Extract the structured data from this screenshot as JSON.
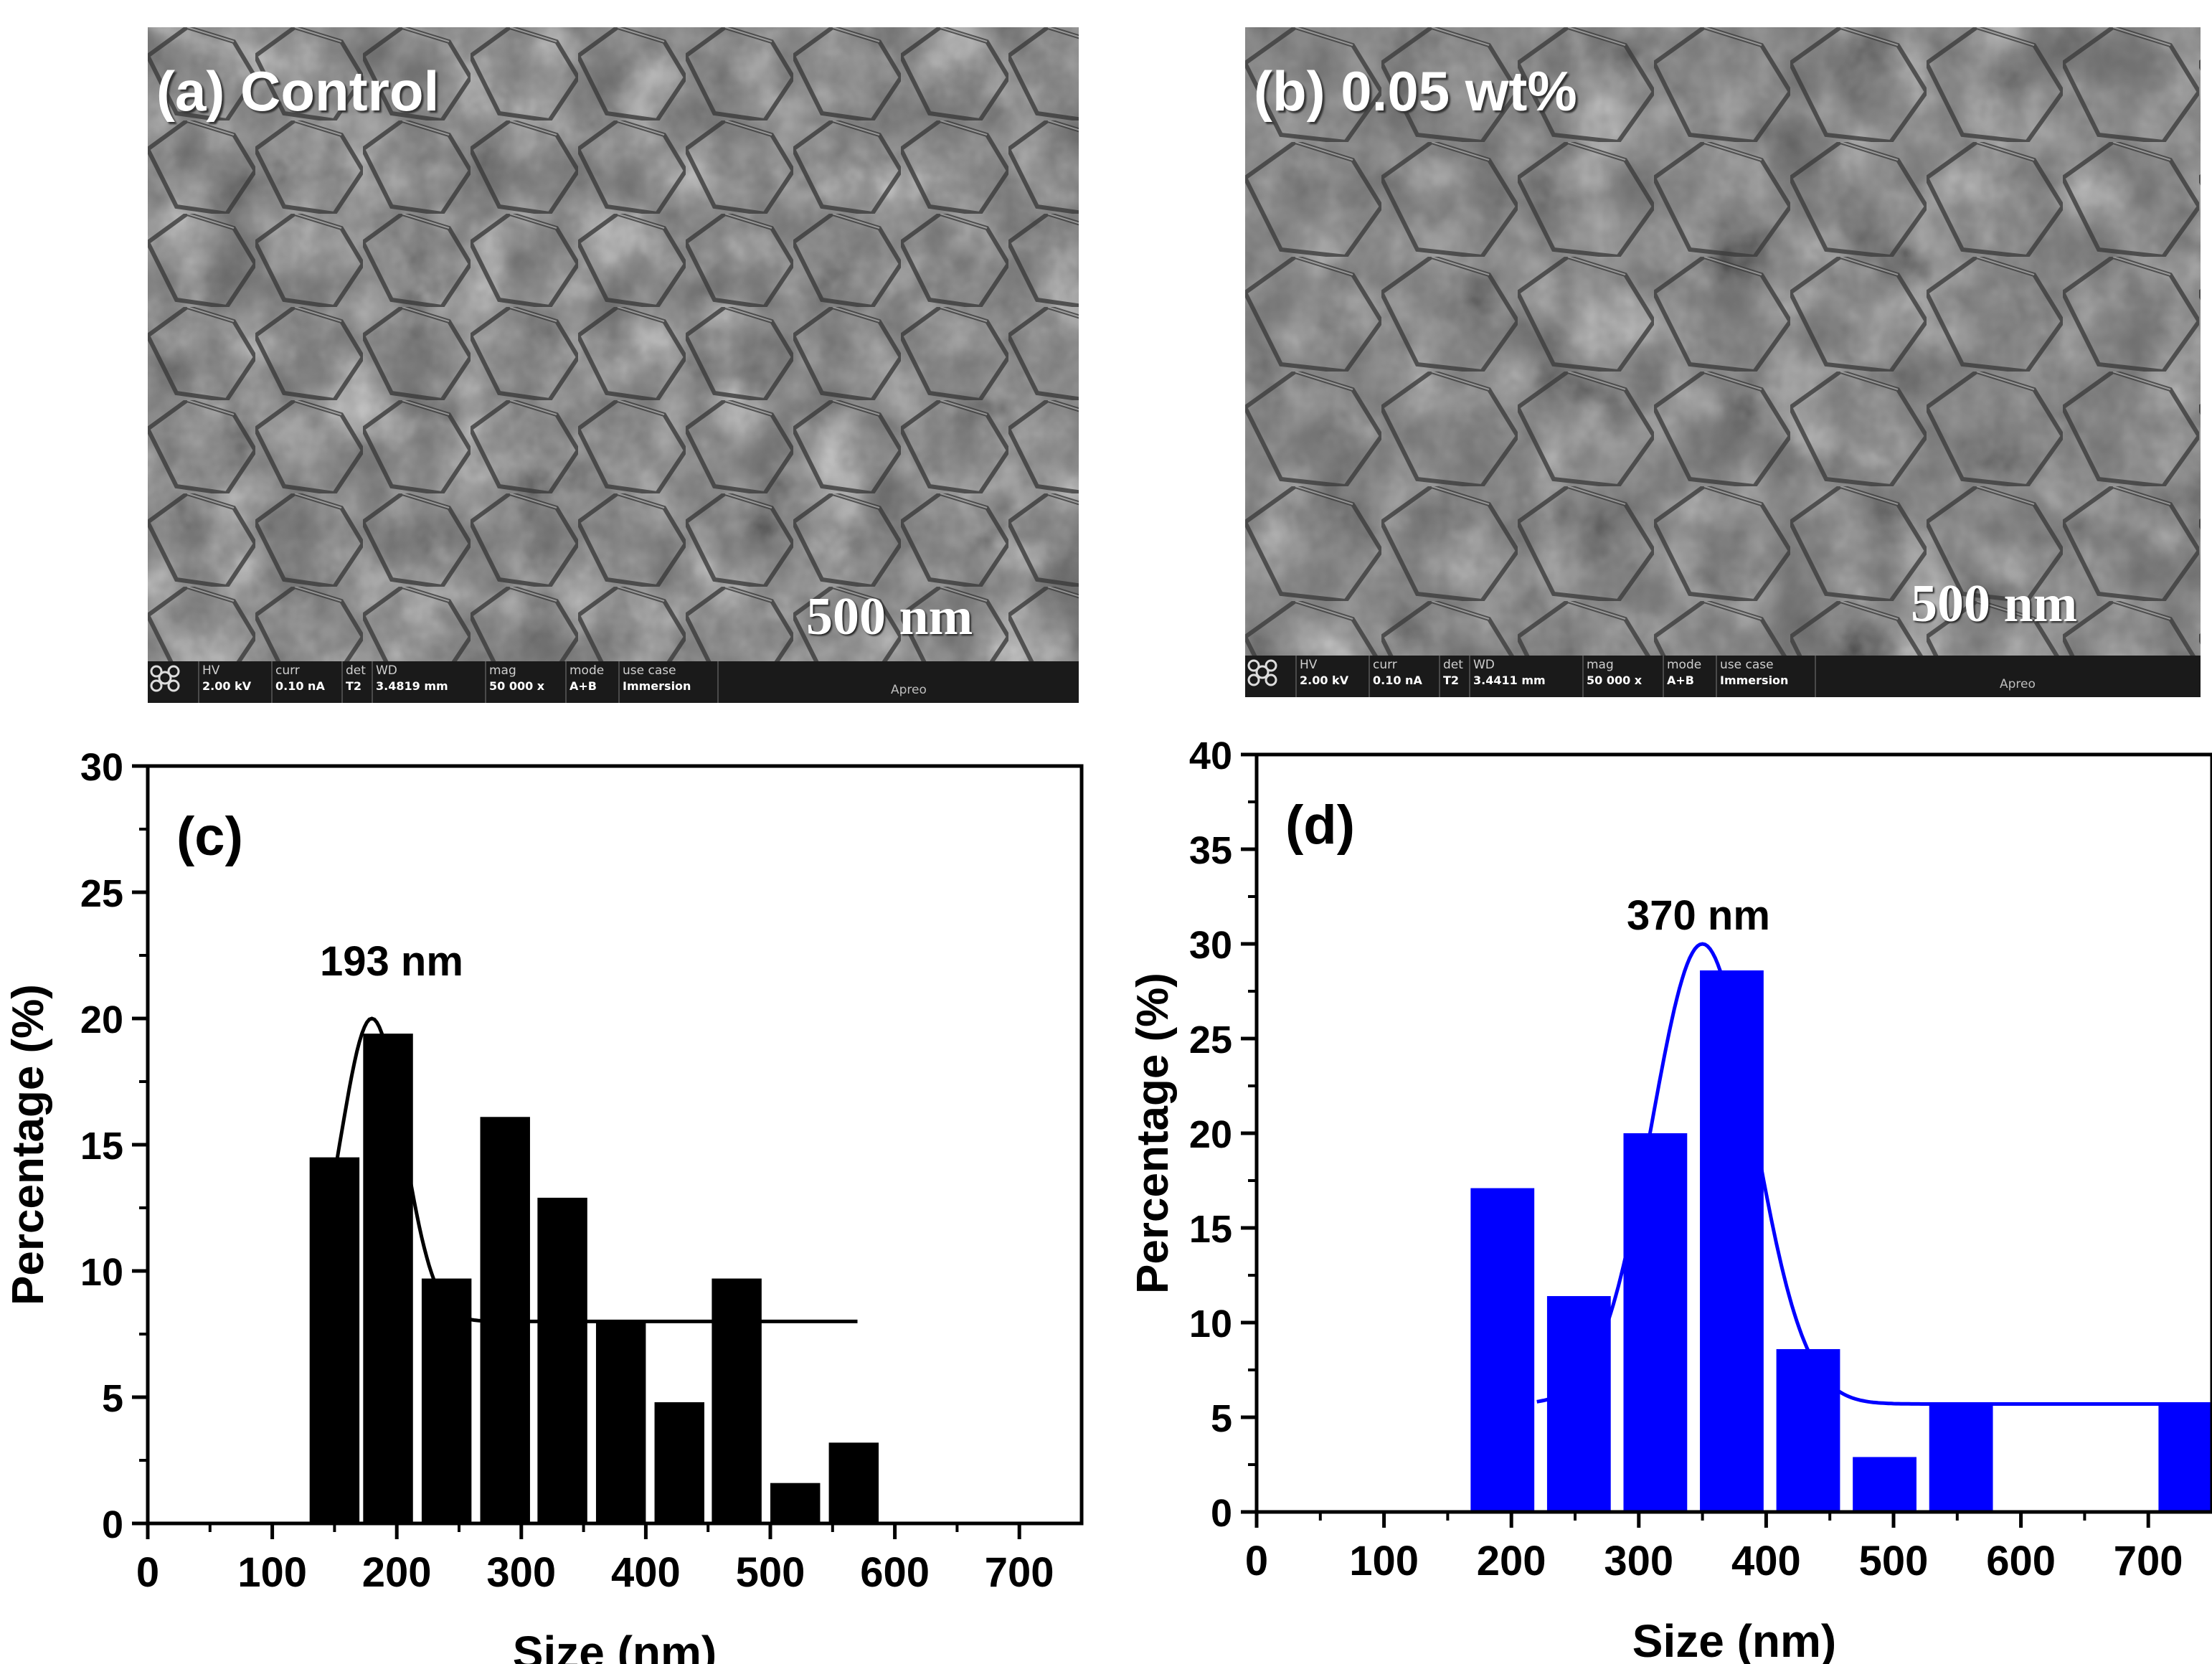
{
  "figure": {
    "panel_a": {
      "label": "(a) Control",
      "scale_label": "500 nm",
      "databar": {
        "hv_label": "HV",
        "hv": "2.00 kV",
        "curr_label": "curr",
        "curr": "0.10 nA",
        "det_label": "det",
        "det": "T2",
        "wd_label": "WD",
        "wd": "3.4819 mm",
        "mag_label": "mag",
        "mag": "50 000 x",
        "mode_label": "mode",
        "mode": "A+B",
        "usecase_label": "use case",
        "usecase": "Immersion",
        "instrument": "Apreo"
      }
    },
    "panel_b": {
      "label": "(b) 0.05 wt%",
      "scale_label": "500 nm",
      "databar": {
        "hv_label": "HV",
        "hv": "2.00 kV",
        "curr_label": "curr",
        "curr": "0.10 nA",
        "det_label": "det",
        "det": "T2",
        "wd_label": "WD",
        "wd": "3.4411 mm",
        "mag_label": "mag",
        "mag": "50 000 x",
        "mode_label": "mode",
        "mode": "A+B",
        "usecase_label": "use case",
        "usecase": "Immersion",
        "instrument": "Apreo"
      }
    }
  },
  "chart_data": [
    {
      "id": "c",
      "type": "bar",
      "panel_label": "(c)",
      "annotation": "193 nm",
      "xlabel": "Size (nm)",
      "ylabel": "Percentage (%)",
      "xlim": [
        0,
        750
      ],
      "ylim": [
        0,
        30
      ],
      "xticks": [
        0,
        100,
        200,
        300,
        400,
        500,
        600,
        700
      ],
      "yticks": [
        0,
        5,
        10,
        15,
        20,
        25,
        30
      ],
      "bar_color": "#000000",
      "bars": [
        {
          "center": 150,
          "width": 40,
          "value": 14.5
        },
        {
          "center": 193,
          "width": 40,
          "value": 19.4
        },
        {
          "center": 240,
          "width": 40,
          "value": 9.7
        },
        {
          "center": 287,
          "width": 40,
          "value": 16.1
        },
        {
          "center": 333,
          "width": 40,
          "value": 12.9
        },
        {
          "center": 380,
          "width": 40,
          "value": 8.0
        },
        {
          "center": 427,
          "width": 40,
          "value": 4.8
        },
        {
          "center": 473,
          "width": 40,
          "value": 9.7
        },
        {
          "center": 520,
          "width": 40,
          "value": 1.6
        },
        {
          "center": 567,
          "width": 40,
          "value": 3.2
        }
      ],
      "fit": {
        "name": "Gaussian fit",
        "color": "#000000",
        "baseline": 8.0,
        "amplitude": 12.0,
        "center": 180,
        "sigma": 25,
        "x_range": [
          150,
          570
        ]
      }
    },
    {
      "id": "d",
      "type": "bar",
      "panel_label": "(d)",
      "annotation": "370 nm",
      "xlabel": "Size (nm)",
      "ylabel": "Percentage (%)",
      "xlim": [
        0,
        750
      ],
      "ylim": [
        0,
        40
      ],
      "xticks": [
        0,
        100,
        200,
        300,
        400,
        500,
        600,
        700
      ],
      "yticks": [
        0,
        5,
        10,
        15,
        20,
        25,
        30,
        35,
        40
      ],
      "bar_color": "#0000ff",
      "bars": [
        {
          "center": 193,
          "width": 50,
          "value": 17.1
        },
        {
          "center": 253,
          "width": 50,
          "value": 11.4
        },
        {
          "center": 313,
          "width": 50,
          "value": 20.0
        },
        {
          "center": 373,
          "width": 50,
          "value": 28.6
        },
        {
          "center": 433,
          "width": 50,
          "value": 8.6
        },
        {
          "center": 493,
          "width": 50,
          "value": 2.9
        },
        {
          "center": 553,
          "width": 50,
          "value": 5.7
        },
        {
          "center": 733,
          "width": 50,
          "value": 5.7
        }
      ],
      "fit": {
        "name": "Gaussian fit",
        "color": "#0000ff",
        "baseline": 5.7,
        "amplitude": 24.3,
        "center": 350,
        "sigma": 40,
        "x_range": [
          220,
          750
        ]
      }
    }
  ]
}
